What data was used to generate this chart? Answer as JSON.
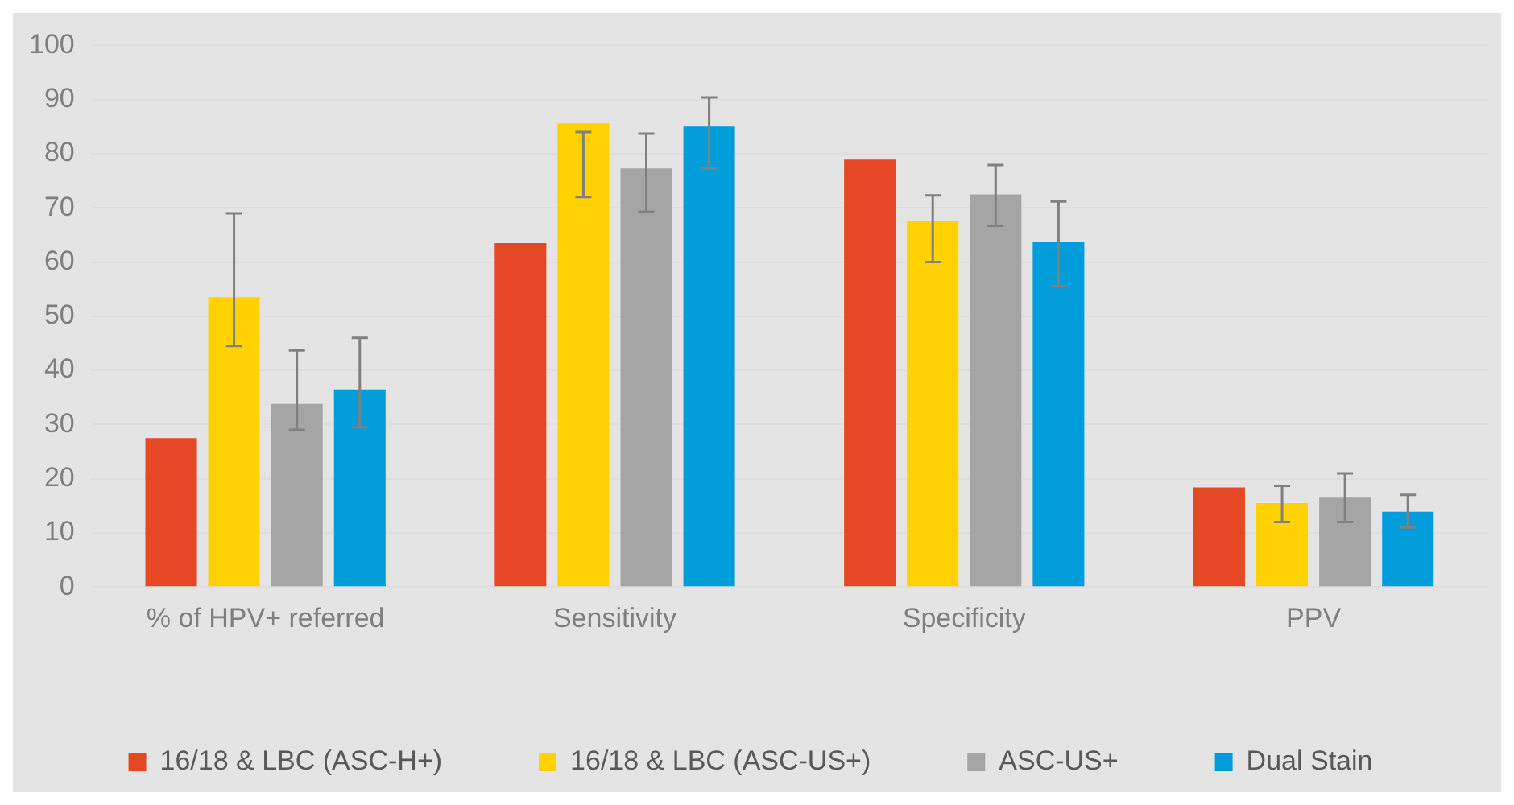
{
  "chart_data": {
    "type": "bar",
    "categories": [
      "% of HPV+ referred",
      "Sensitivity",
      "Specificity",
      "PPV"
    ],
    "series": [
      {
        "name": "16/18 & LBC (ASC-H+)",
        "color": "#e64826",
        "values": [
          27.5,
          63.5,
          78.9,
          18.4
        ]
      },
      {
        "name": "16/18 & LBC (ASC-US+)",
        "color": "#ffd200",
        "values": [
          53.5,
          85.6,
          67.5,
          15.5
        ],
        "errors": [
          [
            44.5,
            69
          ],
          [
            72,
            84
          ],
          [
            60,
            72.3
          ],
          [
            12,
            18.7
          ]
        ]
      },
      {
        "name": "ASC-US+",
        "color": "#a5a5a5",
        "values": [
          33.8,
          77.3,
          72.5,
          16.5
        ],
        "errors": [
          [
            29,
            43.7
          ],
          [
            69.3,
            83.7
          ],
          [
            66.7,
            77.9
          ],
          [
            12,
            21
          ]
        ]
      },
      {
        "name": "Dual Stain",
        "color": "#009ddb",
        "values": [
          36.5,
          85,
          63.7,
          13.9
        ],
        "errors": [
          [
            29.5,
            46
          ],
          [
            77.3,
            90.4
          ],
          [
            55.5,
            71.2
          ],
          [
            11,
            17
          ]
        ]
      }
    ],
    "ylim": [
      0,
      100
    ],
    "yticks": [
      0,
      10,
      20,
      30,
      40,
      50,
      60,
      70,
      80,
      90,
      100
    ],
    "grid": "y",
    "legend": "bottom"
  }
}
